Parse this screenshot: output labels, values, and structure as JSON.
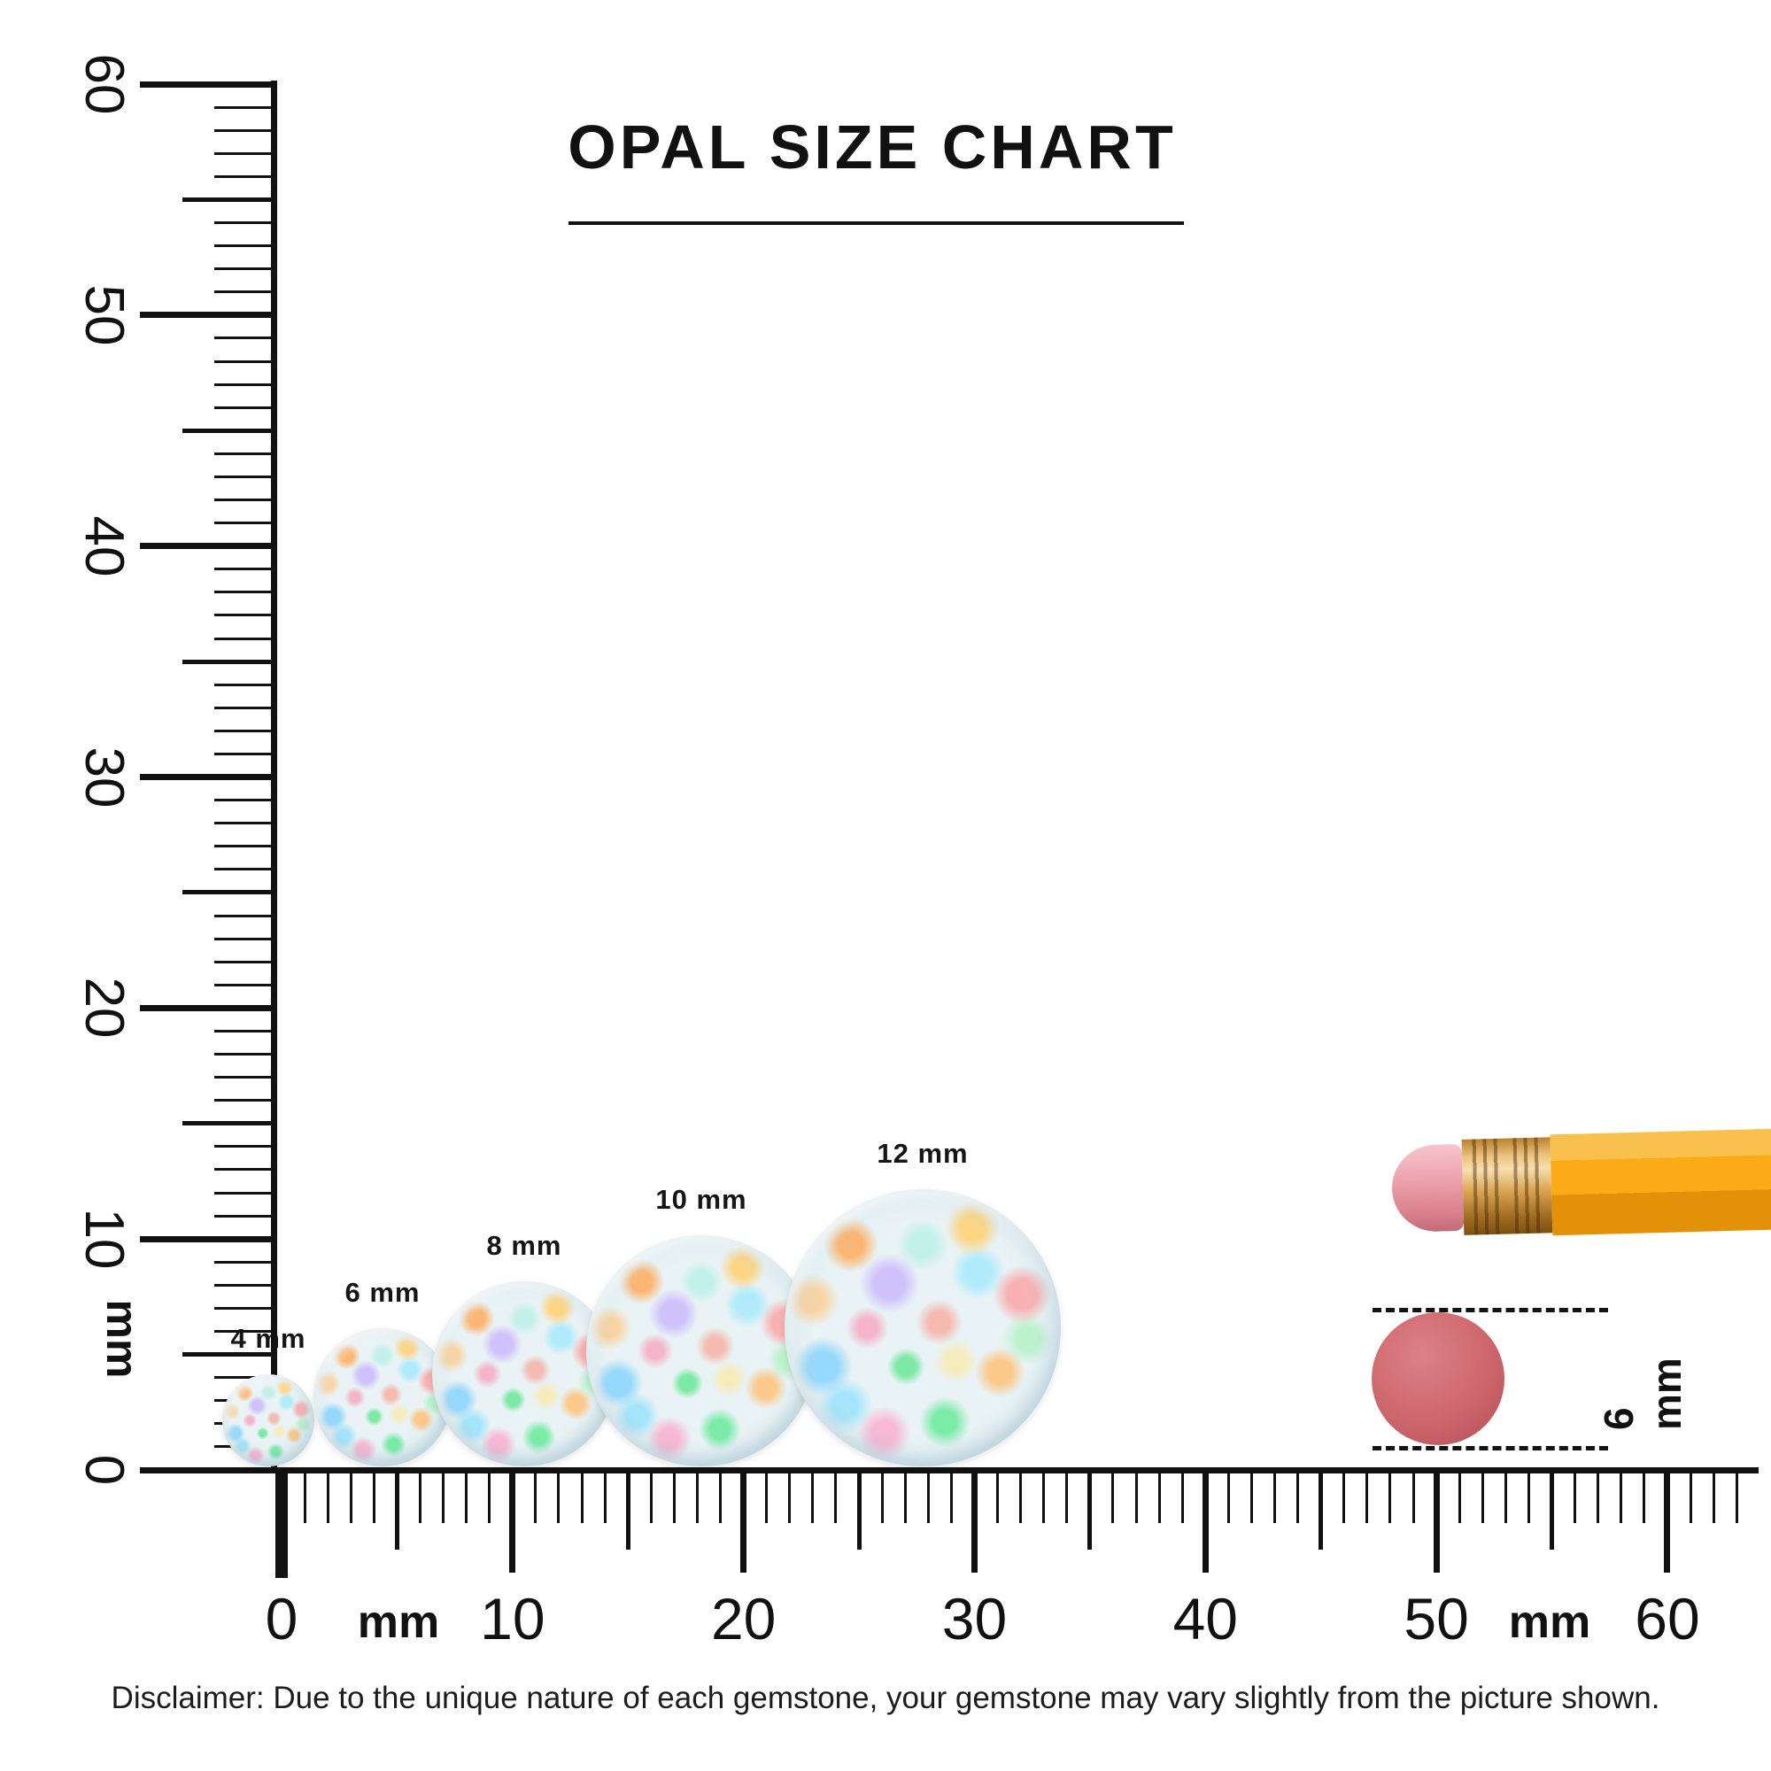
{
  "title": "OPAL SIZE CHART",
  "rulers": {
    "vertical": {
      "unit": "mm",
      "labels": [
        "60",
        "50",
        "40",
        "30",
        "20",
        "10",
        "0"
      ]
    },
    "horizontal": {
      "unit_left": "mm",
      "unit_right": "mm",
      "labels": [
        "0",
        "10",
        "20",
        "30",
        "40",
        "50",
        "60"
      ]
    }
  },
  "opals": [
    {
      "label": "4 mm",
      "size_mm": 4
    },
    {
      "label": "6 mm",
      "size_mm": 6
    },
    {
      "label": "8 mm",
      "size_mm": 8
    },
    {
      "label": "10 mm",
      "size_mm": 10
    },
    {
      "label": "12 mm",
      "size_mm": 12
    }
  ],
  "reference": {
    "eraser_label": "6 mm"
  },
  "disclaimer": "Disclaimer: Due to the unique nature of each gemstone, your gemstone may vary slightly from the picture shown.",
  "colors": {
    "ink": "#111111",
    "pencil_body": "#fbab16",
    "pencil_ferrule": "#d9a453",
    "pencil_eraser": "#eca3ad",
    "reference_eraser": "#cd666d",
    "opal_base": "#e9f3f5"
  }
}
